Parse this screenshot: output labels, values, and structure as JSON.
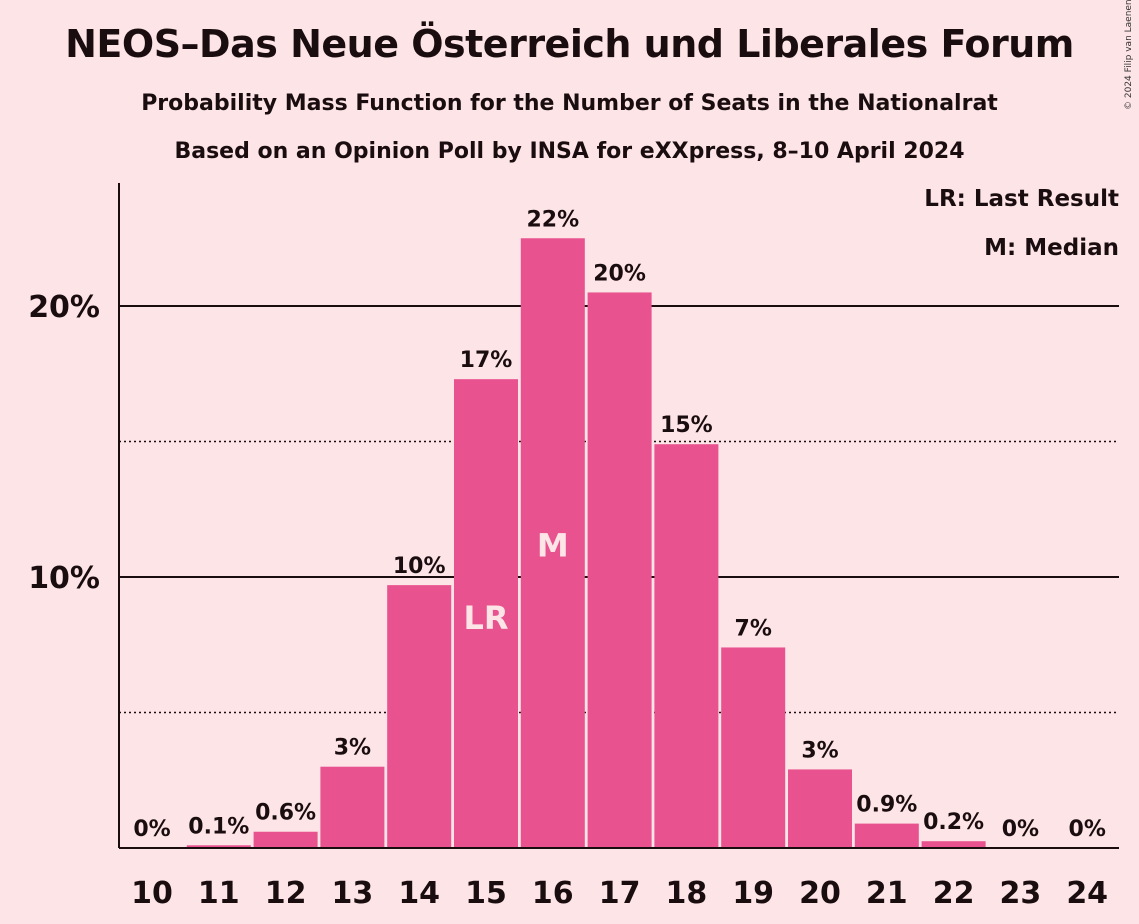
{
  "header": {
    "title": "NEOS–Das Neue Österreich und Liberales Forum",
    "subtitle1": "Probability Mass Function for the Number of Seats in the Nationalrat",
    "subtitle2": "Based on an Opinion Poll by INSA for eXXpress, 8–10 April 2024",
    "copyright": "© 2024 Filip van Laenen"
  },
  "legend": {
    "lr": "LR: Last Result",
    "m": "M: Median"
  },
  "colors": {
    "bar": "#e8528f",
    "background": "#fde4e7",
    "text": "#1a0d10"
  },
  "chart_data": {
    "type": "bar",
    "categories": [
      "10",
      "11",
      "12",
      "13",
      "14",
      "15",
      "16",
      "17",
      "18",
      "19",
      "20",
      "21",
      "22",
      "23",
      "24"
    ],
    "values": [
      0,
      0.1,
      0.6,
      3.0,
      9.7,
      17.3,
      22.5,
      20.5,
      14.9,
      7.4,
      2.9,
      0.9,
      0.25,
      0,
      0
    ],
    "value_labels": [
      "0%",
      "0.1%",
      "0.6%",
      "3%",
      "10%",
      "17%",
      "22%",
      "20%",
      "15%",
      "7%",
      "3%",
      "0.9%",
      "0.2%",
      "0%",
      "0%"
    ],
    "ylim": [
      0,
      24.5
    ],
    "yticks": [
      {
        "value": 10,
        "label": "10%"
      },
      {
        "value": 20,
        "label": "20%"
      }
    ],
    "dotted_lines": [
      5,
      15
    ],
    "markers": [
      {
        "category": "15",
        "label": "LR"
      },
      {
        "category": "16",
        "label": "M"
      }
    ]
  }
}
